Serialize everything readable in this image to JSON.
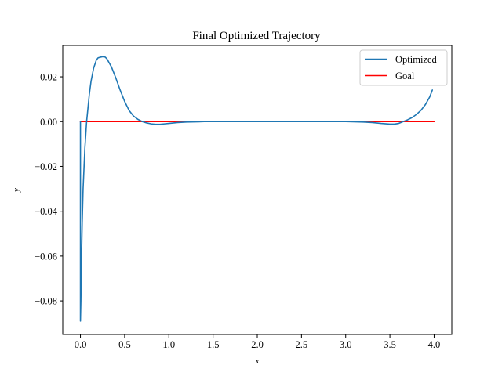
{
  "chart_data": {
    "type": "line",
    "title": "Final Optimized Trajectory",
    "xlabel": "x",
    "ylabel": "y",
    "xlim": [
      -0.2,
      4.2
    ],
    "ylim": [
      -0.095,
      0.034
    ],
    "xticks": [
      0.0,
      0.5,
      1.0,
      1.5,
      2.0,
      2.5,
      3.0,
      3.5,
      4.0
    ],
    "xtick_labels": [
      "0.0",
      "0.5",
      "1.0",
      "1.5",
      "2.0",
      "2.5",
      "3.0",
      "3.5",
      "4.0"
    ],
    "yticks": [
      -0.08,
      -0.06,
      -0.04,
      -0.02,
      0.0,
      0.02
    ],
    "ytick_labels": [
      "−0.08",
      "−0.06",
      "−0.04",
      "−0.02",
      "0.00",
      "0.02"
    ],
    "grid": false,
    "legend_position": "top-right",
    "series": [
      {
        "name": "Optimized",
        "color": "#1f77b4",
        "x": [
          0.0,
          0.0,
          0.005,
          0.01,
          0.02,
          0.03,
          0.05,
          0.07,
          0.1,
          0.12,
          0.15,
          0.18,
          0.2,
          0.25,
          0.28,
          0.3,
          0.35,
          0.4,
          0.45,
          0.5,
          0.55,
          0.6,
          0.65,
          0.7,
          0.75,
          0.8,
          0.85,
          0.9,
          0.95,
          1.0,
          1.1,
          1.2,
          1.3,
          1.4,
          1.6,
          2.0,
          2.5,
          3.0,
          3.2,
          3.3,
          3.4,
          3.5,
          3.55,
          3.6,
          3.65,
          3.7,
          3.75,
          3.8,
          3.85,
          3.9,
          3.95,
          3.98
        ],
        "y": [
          0.0,
          -0.089,
          -0.08,
          -0.065,
          -0.045,
          -0.03,
          -0.012,
          0.0,
          0.012,
          0.018,
          0.024,
          0.0275,
          0.0285,
          0.029,
          0.0288,
          0.028,
          0.0245,
          0.0195,
          0.014,
          0.009,
          0.005,
          0.0025,
          0.001,
          0.0,
          -0.0006,
          -0.001,
          -0.0012,
          -0.0012,
          -0.001,
          -0.0008,
          -0.0004,
          -0.0002,
          -0.0001,
          0.0,
          0.0,
          0.0,
          0.0,
          0.0,
          -0.0002,
          -0.0004,
          -0.0008,
          -0.0011,
          -0.0011,
          -0.0008,
          0.0,
          0.0008,
          0.0018,
          0.0032,
          0.005,
          0.0075,
          0.011,
          0.0141
        ]
      },
      {
        "name": "Goal",
        "color": "#ff0000",
        "x": [
          0.0,
          4.0
        ],
        "y": [
          0.0,
          0.0
        ]
      }
    ]
  }
}
